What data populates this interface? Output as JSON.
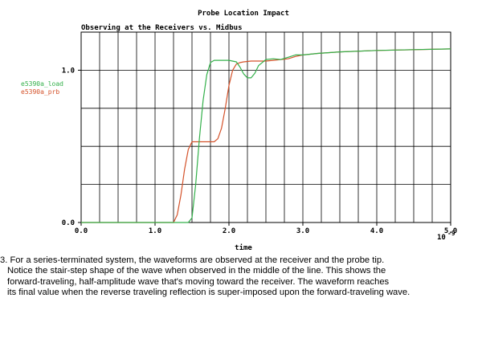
{
  "chart_data": {
    "type": "line",
    "title": "Probe Location Impact",
    "subtitle": "Observing at the Receivers vs. Midbus",
    "xlabel": "time",
    "x_multiplier": "10",
    "x_multiplier_exp": "-9",
    "xlim": [
      0,
      5.0
    ],
    "ylim": [
      0,
      1.25
    ],
    "x_ticks": [
      {
        "value": 0,
        "label": "0.0"
      },
      {
        "value": 1,
        "label": "1.0"
      },
      {
        "value": 2,
        "label": "2.0"
      },
      {
        "value": 3,
        "label": "3.0"
      },
      {
        "value": 4,
        "label": "4.0"
      },
      {
        "value": 5,
        "label": "5.0"
      }
    ],
    "y_ticks": [
      {
        "value": 0,
        "label": "0.0"
      },
      {
        "value": 1,
        "label": "1.0"
      }
    ],
    "grid": true,
    "legend_position": "left",
    "series": [
      {
        "name": "e5390a_load",
        "color": "#33b04a",
        "x": [
          0,
          1.45,
          1.5,
          1.55,
          1.6,
          1.65,
          1.7,
          1.75,
          1.8,
          1.85,
          1.9,
          2.0,
          2.1,
          2.15,
          2.2,
          2.25,
          2.3,
          2.35,
          2.4,
          2.5,
          2.6,
          2.7,
          2.8,
          2.9,
          3.0,
          3.2,
          3.5,
          4.0,
          4.5,
          5.0
        ],
        "y": [
          0,
          0,
          0.03,
          0.25,
          0.55,
          0.8,
          0.97,
          1.05,
          1.065,
          1.065,
          1.065,
          1.065,
          1.055,
          1.02,
          0.975,
          0.95,
          0.95,
          0.98,
          1.03,
          1.07,
          1.075,
          1.07,
          1.085,
          1.1,
          1.1,
          1.11,
          1.12,
          1.13,
          1.135,
          1.14
        ]
      },
      {
        "name": "e5390a_prb",
        "color": "#d4522a",
        "x": [
          0,
          1.25,
          1.3,
          1.35,
          1.4,
          1.45,
          1.5,
          1.55,
          1.6,
          1.7,
          1.8,
          1.85,
          1.9,
          1.95,
          2.0,
          2.05,
          2.1,
          2.15,
          2.2,
          2.3,
          2.4,
          2.5,
          2.6,
          2.8,
          2.9,
          3.0,
          3.2,
          3.5,
          4.0,
          5.0
        ],
        "y": [
          0,
          0,
          0.05,
          0.18,
          0.35,
          0.48,
          0.53,
          0.53,
          0.53,
          0.53,
          0.53,
          0.55,
          0.62,
          0.75,
          0.9,
          1.0,
          1.04,
          1.05,
          1.055,
          1.06,
          1.06,
          1.06,
          1.065,
          1.075,
          1.09,
          1.1,
          1.11,
          1.12,
          1.13,
          1.14
        ]
      }
    ]
  },
  "caption": {
    "lines": [
      "3. For a series-terminated system, the waveforms are observed at the receiver and the probe tip.",
      "Notice the stair-step shape of the wave when observed in the middle of the line. This shows the",
      "forward-traveling, half-amplitude wave that's moving toward the receiver. The waveform reaches",
      "its final value when the reverse traveling reflection is super-imposed upon the forward-traveling wave."
    ]
  }
}
